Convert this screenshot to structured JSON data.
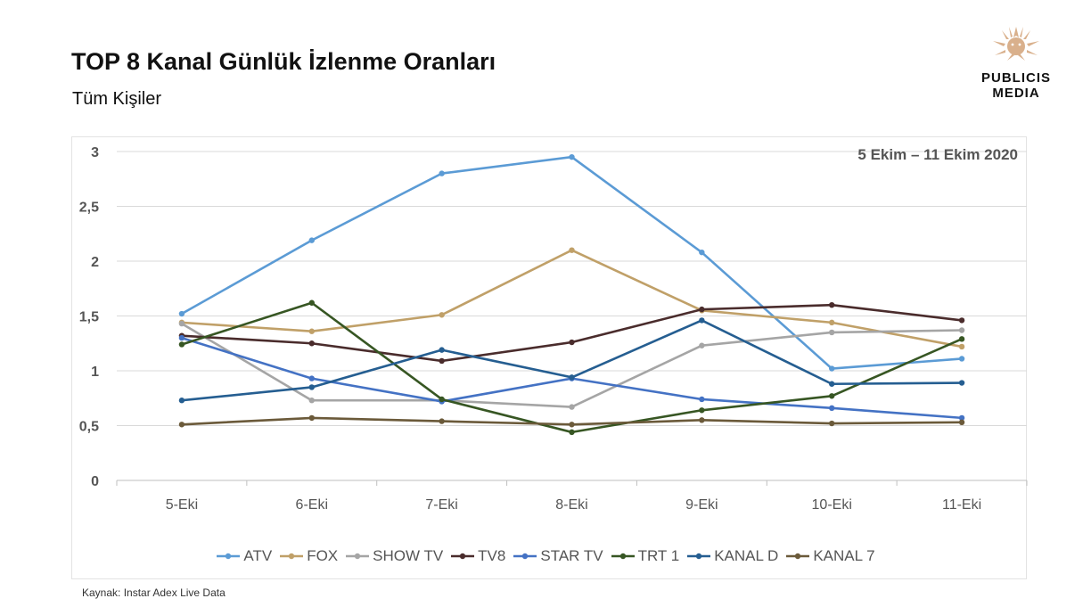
{
  "header": {
    "title": "TOP 8 Kanal Günlük İzlenme Oranları",
    "subtitle": "Tüm Kişiler"
  },
  "logo": {
    "line1": "PUBLICIS",
    "line2": "MEDIA",
    "icon": "lion-head-icon",
    "color": "#d9b08c"
  },
  "date_range": "5 Ekim – 11 Ekim 2020",
  "source": "Kaynak: Instar  Adex Live Data",
  "chart_data": {
    "type": "line",
    "categories": [
      "5-Eki",
      "6-Eki",
      "7-Eki",
      "8-Eki",
      "9-Eki",
      "10-Eki",
      "11-Eki"
    ],
    "ylim": [
      0,
      3
    ],
    "yticks": [
      "0",
      "0,5",
      "1",
      "1,5",
      "2",
      "2,5",
      "3"
    ],
    "grid": true,
    "legend_position": "bottom",
    "series": [
      {
        "name": "ATV",
        "color": "#5b9bd5",
        "values": [
          1.52,
          2.19,
          2.8,
          2.95,
          2.08,
          1.02,
          1.11
        ]
      },
      {
        "name": "FOX",
        "color": "#c0a068",
        "values": [
          1.44,
          1.36,
          1.51,
          2.1,
          1.55,
          1.44,
          1.22
        ]
      },
      {
        "name": "SHOW TV",
        "color": "#a5a5a5",
        "values": [
          1.43,
          0.73,
          0.73,
          0.67,
          1.23,
          1.35,
          1.37
        ]
      },
      {
        "name": "TV8",
        "color": "#4a2c2c",
        "values": [
          1.32,
          1.25,
          1.09,
          1.26,
          1.56,
          1.6,
          1.46
        ]
      },
      {
        "name": "STAR TV",
        "color": "#4472c4",
        "values": [
          1.3,
          0.93,
          0.72,
          0.93,
          0.74,
          0.66,
          0.57
        ]
      },
      {
        "name": "TRT 1",
        "color": "#375623",
        "values": [
          1.24,
          1.62,
          0.74,
          0.44,
          0.64,
          0.77,
          1.29
        ]
      },
      {
        "name": "KANAL D",
        "color": "#255e91",
        "values": [
          0.73,
          0.85,
          1.19,
          0.94,
          1.46,
          0.88,
          0.89
        ]
      },
      {
        "name": "KANAL 7",
        "color": "#6b5a3a",
        "values": [
          0.51,
          0.57,
          0.54,
          0.51,
          0.55,
          0.52,
          0.53
        ]
      }
    ]
  }
}
